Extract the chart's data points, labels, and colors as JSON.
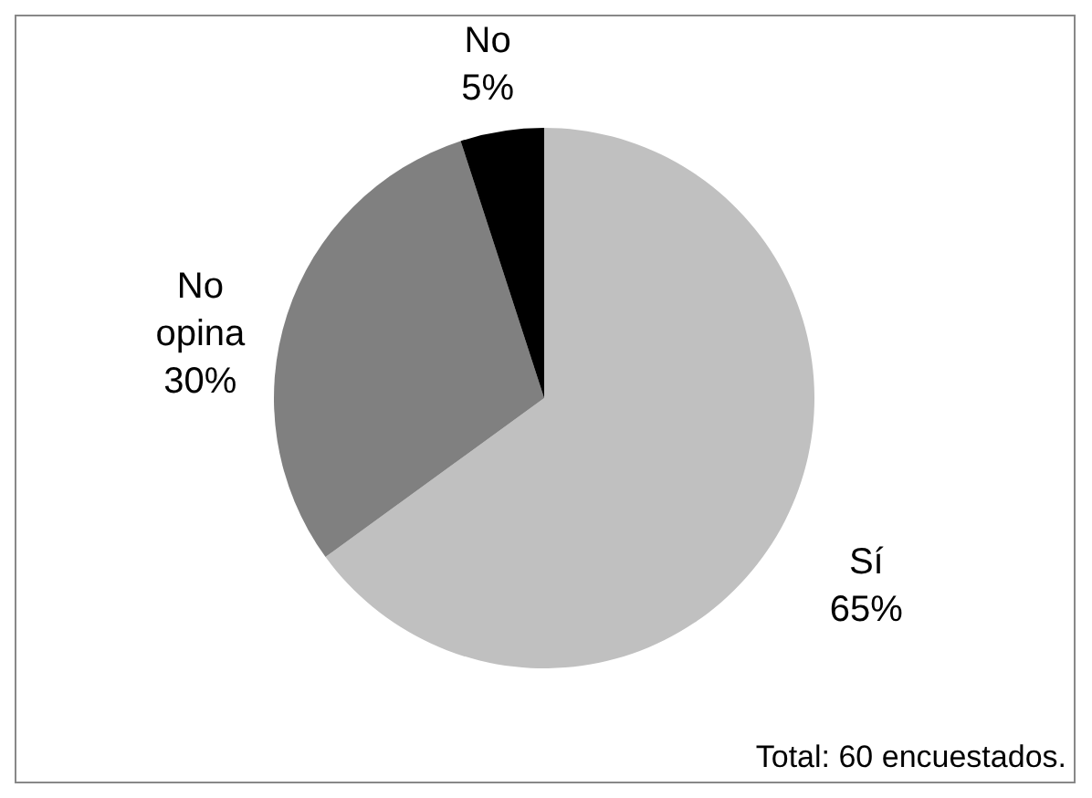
{
  "chart_data": {
    "type": "pie",
    "categories": [
      "Sí",
      "No opina",
      "No"
    ],
    "values": [
      65,
      30,
      5
    ],
    "value_labels": [
      "65%",
      "30%",
      "5%"
    ],
    "colors": [
      "#c0c0c0",
      "#808080",
      "#000000"
    ],
    "legend": false,
    "annotations": [
      "Total: 60 encuestados."
    ]
  }
}
